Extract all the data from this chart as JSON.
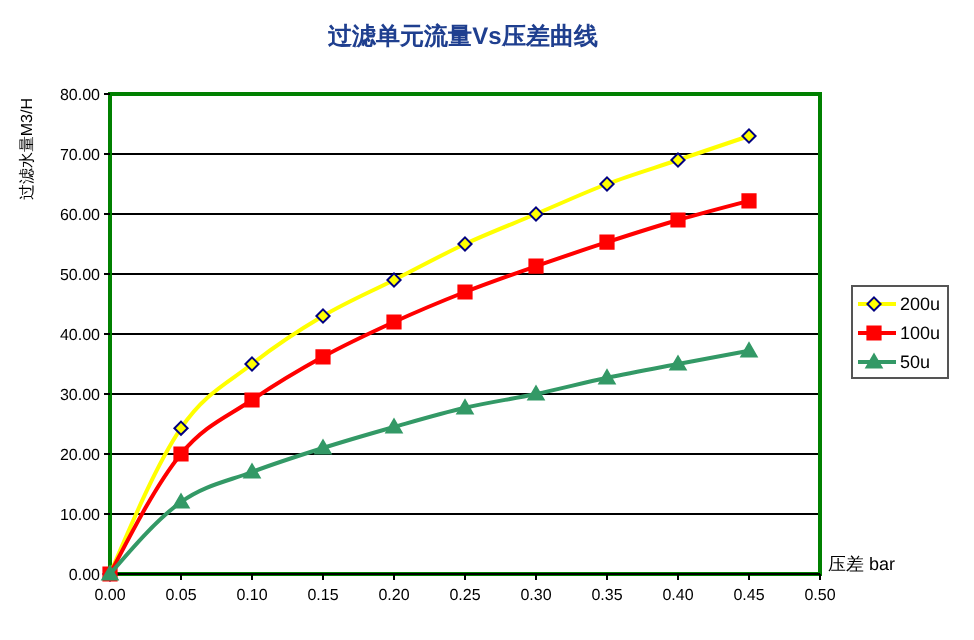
{
  "chart_data": {
    "type": "line",
    "title": "过滤单元流量Vs压差曲线",
    "xlabel": "压差 bar",
    "ylabel": "过滤水量M3/H",
    "x": [
      0,
      0.05,
      0.1,
      0.15,
      0.2,
      0.25,
      0.3,
      0.35,
      0.4,
      0.45
    ],
    "series": [
      {
        "name": "200u",
        "color": "#ffff00",
        "marker": "diamond",
        "values": [
          0,
          24.3,
          35,
          43,
          49,
          55,
          60,
          65,
          69,
          73
        ]
      },
      {
        "name": "100u",
        "color": "#ff0000",
        "marker": "square",
        "values": [
          0,
          20,
          29,
          36.2,
          42,
          47,
          51.3,
          55.3,
          59,
          62.2
        ]
      },
      {
        "name": "50u",
        "color": "#339966",
        "marker": "triangle",
        "values": [
          0,
          12,
          17,
          21,
          24.5,
          27.7,
          30,
          32.7,
          35,
          37.2
        ]
      }
    ],
    "xlim": [
      0,
      0.5
    ],
    "ylim": [
      0,
      80
    ],
    "xticks": [
      {
        "value": 0,
        "label": "0.00"
      },
      {
        "value": 0.05,
        "label": "0.05"
      },
      {
        "value": 0.1,
        "label": "0.10"
      },
      {
        "value": 0.15,
        "label": "0.15"
      },
      {
        "value": 0.2,
        "label": "0.20"
      },
      {
        "value": 0.25,
        "label": "0.25"
      },
      {
        "value": 0.3,
        "label": "0.30"
      },
      {
        "value": 0.35,
        "label": "0.35"
      },
      {
        "value": 0.4,
        "label": "0.40"
      },
      {
        "value": 0.45,
        "label": "0.45"
      },
      {
        "value": 0.5,
        "label": "0.50"
      }
    ],
    "yticks": [
      {
        "value": 0,
        "label": "0.00"
      },
      {
        "value": 10,
        "label": "10.00"
      },
      {
        "value": 20,
        "label": "20.00"
      },
      {
        "value": 30,
        "label": "30.00"
      },
      {
        "value": 40,
        "label": "40.00"
      },
      {
        "value": 50,
        "label": "50.00"
      },
      {
        "value": 60,
        "label": "60.00"
      },
      {
        "value": 70,
        "label": "70.00"
      },
      {
        "value": 80,
        "label": "80.00"
      }
    ],
    "grid": "y",
    "legend": "right",
    "line_style": "solid"
  }
}
